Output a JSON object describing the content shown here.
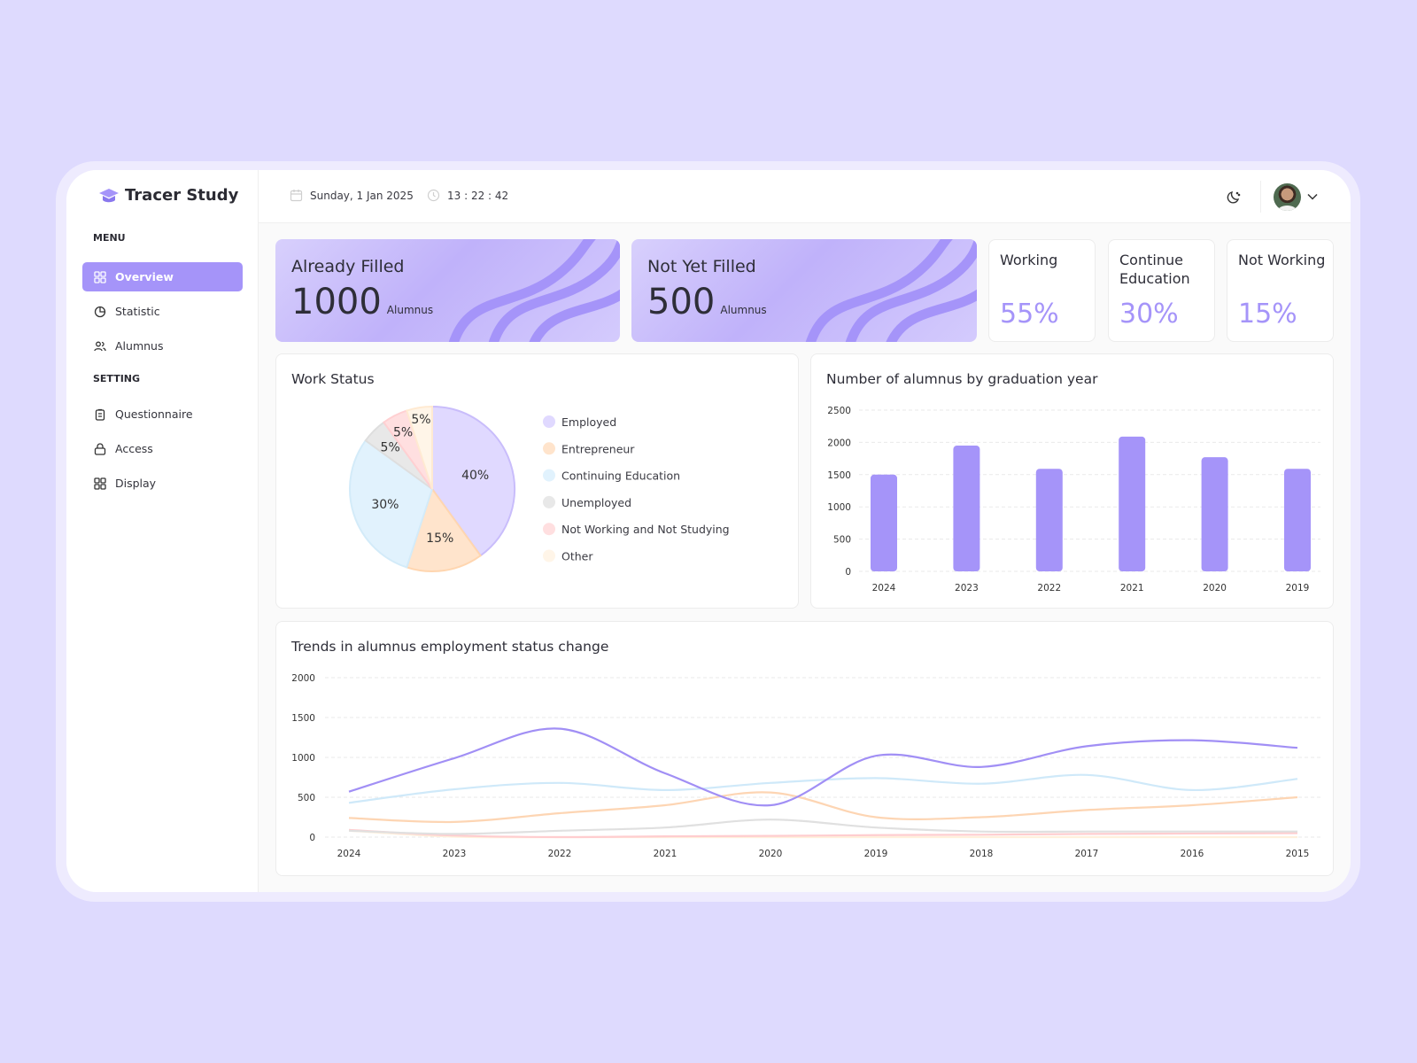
{
  "app": {
    "title": "Tracer Study",
    "accent": "#a594f9"
  },
  "header": {
    "date": "Sunday, 1 Jan 2025",
    "time": "13 : 22 : 42",
    "icons": [
      "calendar-icon",
      "clock-icon",
      "moon-icon",
      "avatar",
      "chevron-down-icon"
    ]
  },
  "sidebar": {
    "menu_label": "MENU",
    "setting_label": "SETTING",
    "menu": [
      {
        "label": "Overview",
        "icon": "grid-icon",
        "active": true
      },
      {
        "label": "Statistic",
        "icon": "pie-chart-icon"
      },
      {
        "label": "Alumnus",
        "icon": "users-icon"
      }
    ],
    "setting": [
      {
        "label": "Questionnaire",
        "icon": "clipboard-icon"
      },
      {
        "label": "Access",
        "icon": "lock-icon"
      },
      {
        "label": "Display",
        "icon": "grid-icon"
      }
    ]
  },
  "summary": {
    "filled": {
      "title": "Already Filled",
      "value": "1000",
      "unit": "Alumnus"
    },
    "not_filled": {
      "title": "Not Yet Filled",
      "value": "500",
      "unit": "Alumnus"
    },
    "stats": [
      {
        "label": "Working",
        "value": "55%"
      },
      {
        "label": "Continue Education",
        "value": "30%"
      },
      {
        "label": "Not Working",
        "value": "15%"
      }
    ]
  },
  "chart_data": [
    {
      "type": "pie",
      "title": "Work Status",
      "legend": "right",
      "slices": [
        {
          "name": "Employed",
          "value": 40,
          "label": "40%",
          "color": "#e0d9ff",
          "stroke": "#c9bdfb"
        },
        {
          "name": "Entrepreneur",
          "value": 15,
          "label": "15%",
          "color": "#ffe4cc",
          "stroke": "#ffd6b0"
        },
        {
          "name": "Continuing Education",
          "value": 30,
          "label": "30%",
          "color": "#e1f2fd",
          "stroke": "#d3ebf9"
        },
        {
          "name": "Unemployed",
          "value": 5,
          "label": "5%",
          "color": "#e8e8e8",
          "stroke": "#dedede"
        },
        {
          "name": "Not Working and Not Studying",
          "value": 5,
          "label": "5%",
          "color": "#ffdfe0",
          "stroke": "#ffd0d2"
        },
        {
          "name": "Other",
          "value": 5,
          "label": "5%",
          "color": "#fff5e8",
          "stroke": "#ffead2"
        }
      ]
    },
    {
      "type": "bar",
      "title": "Number of alumnus by graduation year",
      "categories": [
        "2024",
        "2023",
        "2022",
        "2021",
        "2020",
        "2019"
      ],
      "values": [
        1500,
        1950,
        1590,
        2090,
        1770,
        1590
      ],
      "ylim": [
        0,
        2500
      ],
      "yticks": [
        0,
        500,
        1000,
        1500,
        2000,
        2500
      ],
      "grid": true,
      "color": "#a594f9"
    },
    {
      "type": "line",
      "title": "Trends in alumnus employment status change",
      "categories": [
        "2024",
        "2023",
        "2022",
        "2021",
        "2020",
        "2019",
        "2018",
        "2017",
        "2016",
        "2015"
      ],
      "ylim": [
        0,
        2000
      ],
      "yticks": [
        0,
        500,
        1000,
        1500,
        2000
      ],
      "grid": true,
      "series": [
        {
          "name": "Employed",
          "color": "#a18ff5",
          "values": [
            570,
            990,
            1360,
            800,
            400,
            1020,
            880,
            1140,
            1215,
            1120
          ]
        },
        {
          "name": "Continuing Education",
          "color": "#cfe9f9",
          "values": [
            430,
            600,
            680,
            590,
            680,
            740,
            670,
            780,
            590,
            730
          ]
        },
        {
          "name": "Entrepreneur",
          "color": "#fdd5b3",
          "values": [
            240,
            190,
            300,
            400,
            560,
            250,
            250,
            340,
            400,
            500
          ]
        },
        {
          "name": "Unemployed",
          "color": "#e0e0e0",
          "values": [
            80,
            40,
            80,
            120,
            220,
            120,
            70,
            70,
            70,
            70
          ]
        },
        {
          "name": "Not Working and Not Studying",
          "color": "#ffcdcf",
          "values": [
            90,
            20,
            0,
            10,
            15,
            25,
            30,
            40,
            45,
            50
          ]
        },
        {
          "name": "Other",
          "color": "#fff0dc",
          "values": [
            80,
            5,
            0,
            0,
            0,
            0,
            0,
            0,
            0,
            0
          ]
        }
      ]
    }
  ]
}
